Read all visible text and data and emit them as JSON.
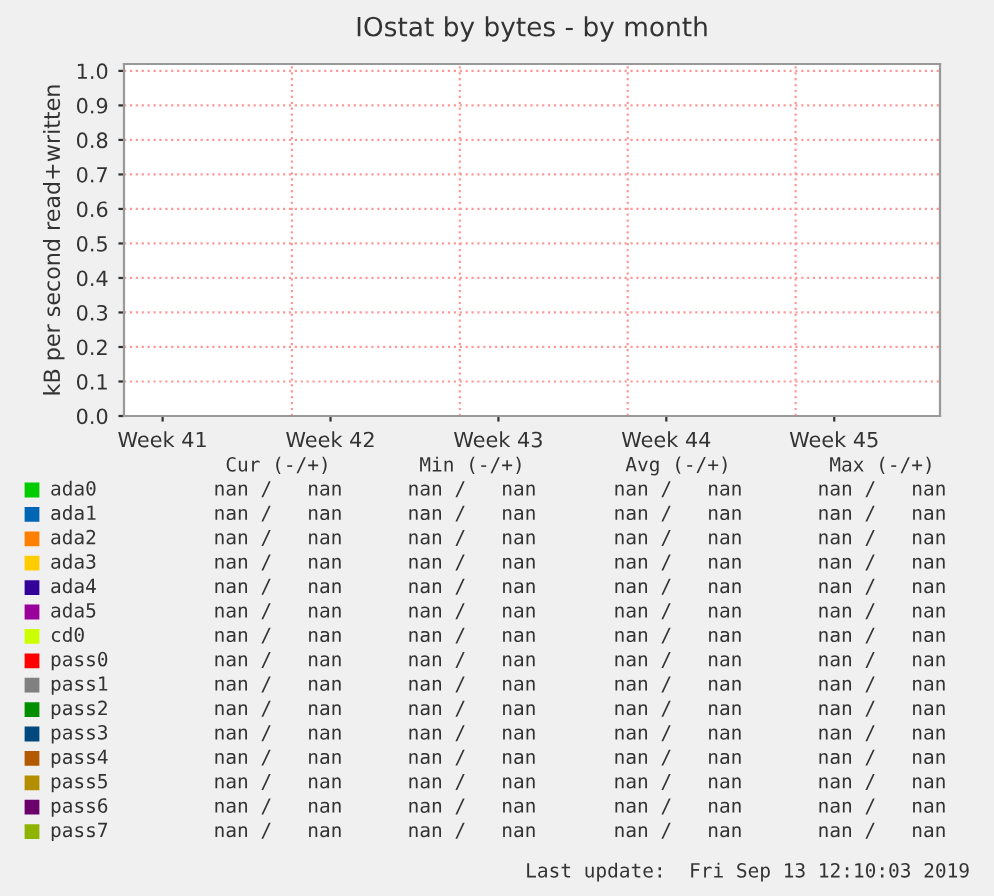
{
  "chart_data": {
    "type": "line",
    "title": "IOstat by bytes - by month",
    "ylabel": "kB per second read+written",
    "categories": [
      "Week 41",
      "Week 42",
      "Week 43",
      "Week 44",
      "Week 45"
    ],
    "ylim": [
      0,
      1.02
    ],
    "yticks": [
      {
        "value": 0,
        "label": "0.0"
      },
      {
        "value": 0.1,
        "label": "0.1"
      },
      {
        "value": 0.2,
        "label": "0.2"
      },
      {
        "value": 0.3,
        "label": "0.3"
      },
      {
        "value": 0.4,
        "label": "0.4"
      },
      {
        "value": 0.5,
        "label": "0.5"
      },
      {
        "value": 0.6,
        "label": "0.6"
      },
      {
        "value": 0.7,
        "label": "0.7"
      },
      {
        "value": 0.8,
        "label": "0.8"
      },
      {
        "value": 0.9,
        "label": "0.9"
      },
      {
        "value": 1,
        "label": "1.0"
      }
    ],
    "grid": true,
    "legend": "bottom",
    "annotations": [
      "Cur (-/+)",
      "Min (-/+)",
      "Avg (-/+)",
      "Max (-/+)",
      "Last update:  Fri Sep 13 12:10:03 2019",
      "nan /   nan",
      "nan /   nan",
      "nan /   nan",
      "nan /   nan",
      "nan /   nan",
      "nan /   nan",
      "nan /   nan",
      "nan /   nan",
      "nan /   nan",
      "nan /   nan",
      "nan /   nan",
      "nan /   nan",
      "nan /   nan",
      "nan /   nan",
      "nan /   nan",
      "nan /   nan",
      "nan /   nan",
      "nan /   nan",
      "nan /   nan",
      "nan /   nan",
      "nan /   nan",
      "nan /   nan",
      "nan /   nan",
      "nan /   nan",
      "nan /   nan",
      "nan /   nan",
      "nan /   nan",
      "nan /   nan",
      "nan /   nan",
      "nan /   nan",
      "nan /   nan",
      "nan /   nan",
      "nan /   nan",
      "nan /   nan",
      "nan /   nan",
      "nan /   nan",
      "nan /   nan",
      "nan /   nan",
      "nan /   nan",
      "nan /   nan",
      "nan /   nan",
      "nan /   nan",
      "nan /   nan",
      "nan /   nan",
      "nan /   nan",
      "nan /   nan",
      "nan /   nan",
      "nan /   nan",
      "nan /   nan",
      "nan /   nan",
      "nan /   nan",
      "nan /   nan",
      "nan /   nan",
      "nan /   nan",
      "nan /   nan",
      "nan /   nan",
      "nan /   nan",
      "nan /   nan",
      "nan /   nan",
      "nan /   nan"
    ],
    "series": [
      {
        "name": "ada0",
        "color": "#00cc00",
        "values": [
          null,
          null,
          null,
          null,
          null
        ]
      },
      {
        "name": "ada1",
        "color": "#0066b3",
        "values": [
          null,
          null,
          null,
          null,
          null
        ]
      },
      {
        "name": "ada2",
        "color": "#ff8000",
        "values": [
          null,
          null,
          null,
          null,
          null
        ]
      },
      {
        "name": "ada3",
        "color": "#ffcc00",
        "values": [
          null,
          null,
          null,
          null,
          null
        ]
      },
      {
        "name": "ada4",
        "color": "#330099",
        "values": [
          null,
          null,
          null,
          null,
          null
        ]
      },
      {
        "name": "ada5",
        "color": "#990099",
        "values": [
          null,
          null,
          null,
          null,
          null
        ]
      },
      {
        "name": "cd0",
        "color": "#ccff00",
        "values": [
          null,
          null,
          null,
          null,
          null
        ]
      },
      {
        "name": "pass0",
        "color": "#ff0000",
        "values": [
          null,
          null,
          null,
          null,
          null
        ]
      },
      {
        "name": "pass1",
        "color": "#808080",
        "values": [
          null,
          null,
          null,
          null,
          null
        ]
      },
      {
        "name": "pass2",
        "color": "#008f00",
        "values": [
          null,
          null,
          null,
          null,
          null
        ]
      },
      {
        "name": "pass3",
        "color": "#00487d",
        "values": [
          null,
          null,
          null,
          null,
          null
        ]
      },
      {
        "name": "pass4",
        "color": "#b35a00",
        "values": [
          null,
          null,
          null,
          null,
          null
        ]
      },
      {
        "name": "pass5",
        "color": "#b38f00",
        "values": [
          null,
          null,
          null,
          null,
          null
        ]
      },
      {
        "name": "pass6",
        "color": "#6b006b",
        "values": [
          null,
          null,
          null,
          null,
          null
        ]
      },
      {
        "name": "pass7",
        "color": "#8fb300",
        "values": [
          null,
          null,
          null,
          null,
          null
        ]
      }
    ]
  }
}
